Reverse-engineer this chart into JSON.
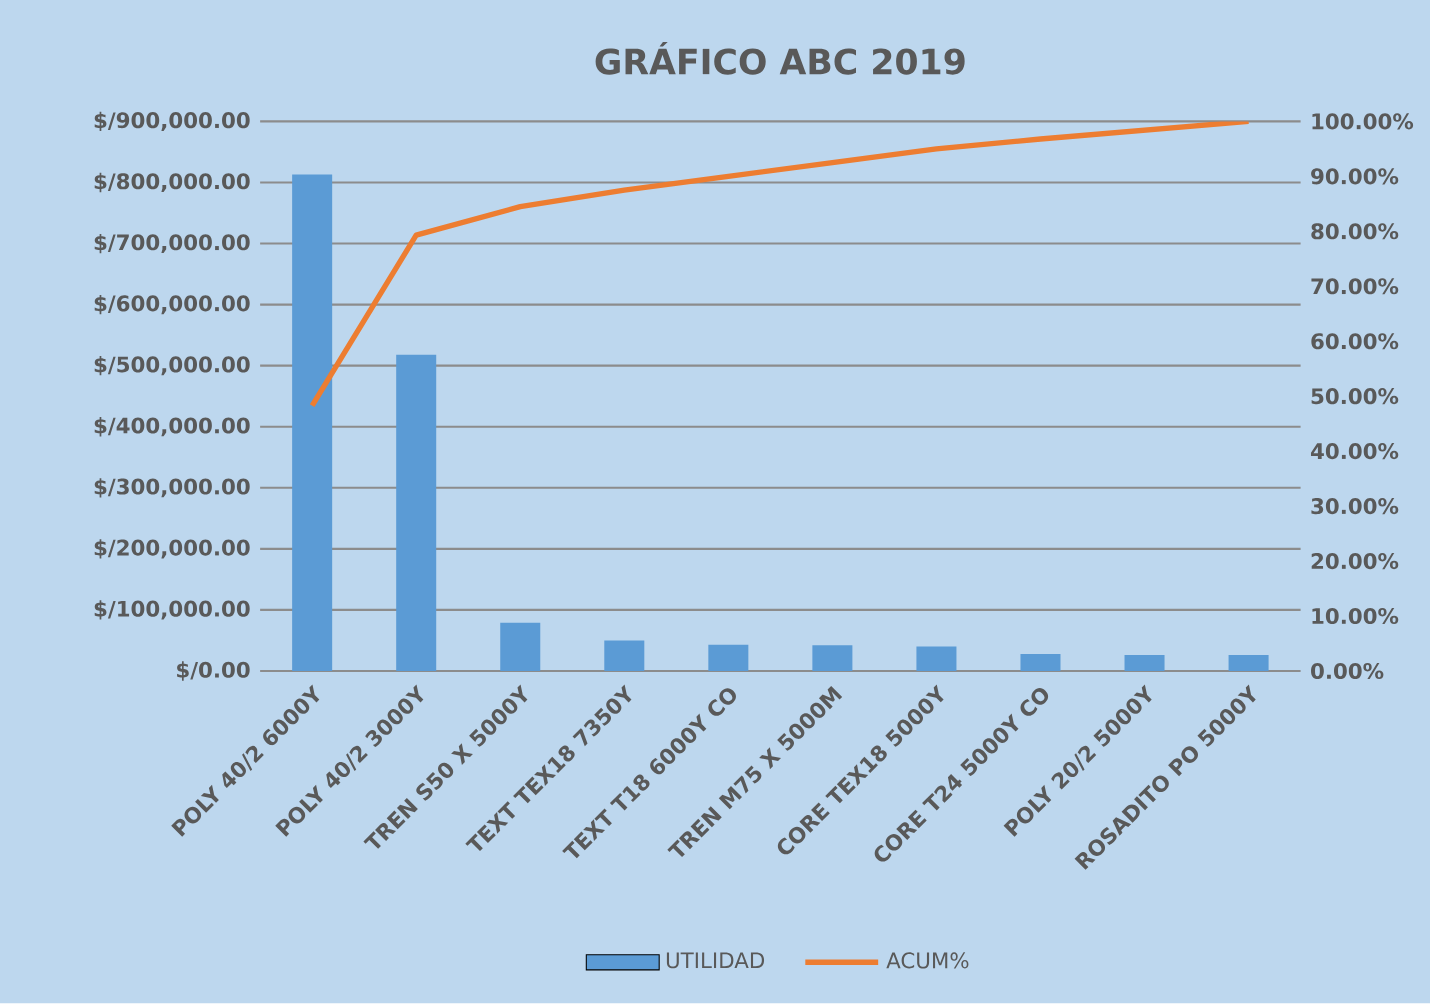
{
  "chart_data": {
    "type": "bar",
    "title": "GRÁFICO ABC 2019",
    "categories": [
      "POLY  40/2  6000Y",
      "POLY  40/2  3000Y",
      "TREN S50 X  5000Y",
      "TEXT TEX18 7350Y",
      "TEXT T18 6000Y CO",
      "TREN M75 X  5000M",
      "CORE TEX18 5000Y",
      "CORE T24 5000Y CO",
      "POLY  20/2  5000Y",
      "ROSADITO PO 5000Y"
    ],
    "series": [
      {
        "name": "UTILIDAD",
        "color": "#5b9bd5",
        "values": [
          813000,
          518000,
          79000,
          50000,
          43000,
          42000,
          40000,
          28000,
          26000,
          26000
        ]
      },
      {
        "name": "ACUM%",
        "type": "line",
        "axis": "y2",
        "color": "#ed7d31",
        "values": [
          48.3,
          79.3,
          84.5,
          87.5,
          90,
          92.5,
          95,
          96.8,
          98.4,
          100
        ]
      }
    ],
    "ylim": [
      0,
      900000
    ],
    "yticks": [
      {
        "value": 0,
        "label": "$/0.00"
      },
      {
        "value": 100000,
        "label": "$/100,000.00"
      },
      {
        "value": 200000,
        "label": "$/200,000.00"
      },
      {
        "value": 300000,
        "label": "$/300,000.00"
      },
      {
        "value": 400000,
        "label": "$/400,000.00"
      },
      {
        "value": 500000,
        "label": "$/500,000.00"
      },
      {
        "value": 600000,
        "label": "$/600,000.00"
      },
      {
        "value": 700000,
        "label": "$/700,000.00"
      },
      {
        "value": 800000,
        "label": "$/800,000.00"
      },
      {
        "value": 900000,
        "label": "$/900,000.00"
      }
    ],
    "y2lim": [
      0,
      100
    ],
    "y2ticks": [
      {
        "value": 0,
        "label": "0.00%"
      },
      {
        "value": 10,
        "label": "10.00%"
      },
      {
        "value": 20,
        "label": "20.00%"
      },
      {
        "value": 30,
        "label": "30.00%"
      },
      {
        "value": 40,
        "label": "40.00%"
      },
      {
        "value": 50,
        "label": "50.00%"
      },
      {
        "value": 60,
        "label": "60.00%"
      },
      {
        "value": 70,
        "label": "70.00%"
      },
      {
        "value": 80,
        "label": "80.00%"
      },
      {
        "value": 90,
        "label": "90.00%"
      },
      {
        "value": 100,
        "label": "100.00%"
      }
    ],
    "grid": "y",
    "legend": "bottom"
  }
}
